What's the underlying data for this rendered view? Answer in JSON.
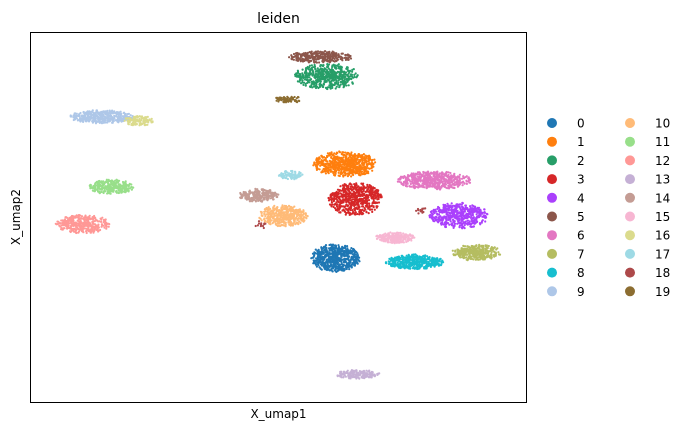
{
  "chart_data": {
    "type": "scatter",
    "title": "leiden",
    "xlabel": "X_umap1",
    "ylabel": "X_umap2",
    "xlim": [
      0,
      100
    ],
    "ylim": [
      0,
      100
    ],
    "grid": false,
    "ticks": false,
    "legend_placement": "right, outside, two columns",
    "clusters": [
      {
        "name": "0",
        "color": "#1f77b4",
        "centers": [
          [
            61.5,
            39.0
          ]
        ]
      },
      {
        "name": "1",
        "color": "#ff7f0e",
        "centers": [
          [
            63.5,
            64.5
          ]
        ]
      },
      {
        "name": "2",
        "color": "#279e68",
        "centers": [
          [
            59.8,
            88.3
          ]
        ]
      },
      {
        "name": "3",
        "color": "#d62728",
        "centers": [
          [
            65.5,
            55.0
          ]
        ]
      },
      {
        "name": "4",
        "color": "#aa40fc",
        "centers": [
          [
            86.5,
            50.5
          ]
        ]
      },
      {
        "name": "5",
        "color": "#8c564b",
        "centers": [
          [
            58.5,
            93.5
          ]
        ]
      },
      {
        "name": "6",
        "color": "#e377c2",
        "centers": [
          [
            81.5,
            60.0
          ]
        ]
      },
      {
        "name": "7",
        "color": "#b5bd61",
        "centers": [
          [
            90.0,
            40.5
          ]
        ]
      },
      {
        "name": "8",
        "color": "#17becf",
        "centers": [
          [
            77.5,
            38.0
          ]
        ]
      },
      {
        "name": "9",
        "color": "#aec7e8",
        "centers": [
          [
            14.3,
            77.3
          ]
        ]
      },
      {
        "name": "10",
        "color": "#ffbb78",
        "centers": [
          [
            51.0,
            50.5
          ]
        ]
      },
      {
        "name": "11",
        "color": "#98df8a",
        "centers": [
          [
            16.3,
            58.3
          ]
        ]
      },
      {
        "name": "12",
        "color": "#ff9896",
        "centers": [
          [
            10.5,
            48.2
          ]
        ]
      },
      {
        "name": "13",
        "color": "#c5b0d5",
        "centers": [
          [
            66.0,
            7.5
          ]
        ]
      },
      {
        "name": "14",
        "color": "#c49c94",
        "centers": [
          [
            46.0,
            56.0
          ]
        ]
      },
      {
        "name": "15",
        "color": "#f7b6d2",
        "centers": [
          [
            73.5,
            44.5
          ]
        ]
      },
      {
        "name": "16",
        "color": "#dbdb8d",
        "centers": [
          [
            21.7,
            76.2
          ]
        ]
      },
      {
        "name": "17",
        "color": "#9edae5",
        "centers": [
          [
            52.5,
            61.5
          ]
        ]
      },
      {
        "name": "18",
        "color": "#ad494a",
        "centers": [
          [
            46.5,
            48.0
          ],
          [
            78.5,
            52.0
          ]
        ]
      },
      {
        "name": "19",
        "color": "#8c6d31",
        "centers": [
          [
            52.0,
            82.0
          ]
        ]
      }
    ]
  }
}
